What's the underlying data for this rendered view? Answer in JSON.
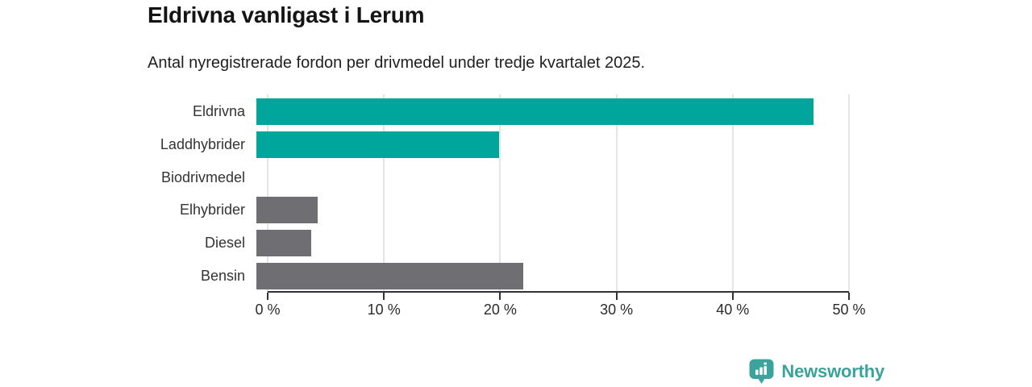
{
  "chart_data": {
    "type": "bar",
    "orientation": "horizontal",
    "title": "Eldrivna vanligast i Lerum",
    "subtitle": "Antal nyregistrerade fordon per drivmedel under tredje kvartalet 2025.",
    "categories": [
      "Eldrivna",
      "Laddhybrider",
      "Biodrivmedel",
      "Elhybrider",
      "Diesel",
      "Bensin"
    ],
    "values": [
      47,
      20.5,
      0,
      5.2,
      4.6,
      22.5
    ],
    "unit": "%",
    "bar_colors": [
      "#00a69c",
      "#00a69c",
      "#6e6e73",
      "#6e6e73",
      "#6e6e73",
      "#6e6e73"
    ],
    "highlight_color": "#00a69c",
    "base_color": "#6e6e73",
    "xlim": [
      0,
      50
    ],
    "x_ticks": [
      {
        "value": 0,
        "label": "0 %"
      },
      {
        "value": 10,
        "label": "10 %"
      },
      {
        "value": 20,
        "label": "20 %"
      },
      {
        "value": 30,
        "label": "30 %"
      },
      {
        "value": 40,
        "label": "40 %"
      },
      {
        "value": 50,
        "label": "50 %"
      }
    ],
    "grid": "vertical",
    "gridline_color": "#e5e5e5",
    "axis_color": "#333333",
    "legend": "none"
  },
  "branding": {
    "logo_text": "Newsworthy",
    "logo_color": "#3ba29c",
    "logo_icon": "newsworthy-pin-barchart-icon"
  }
}
